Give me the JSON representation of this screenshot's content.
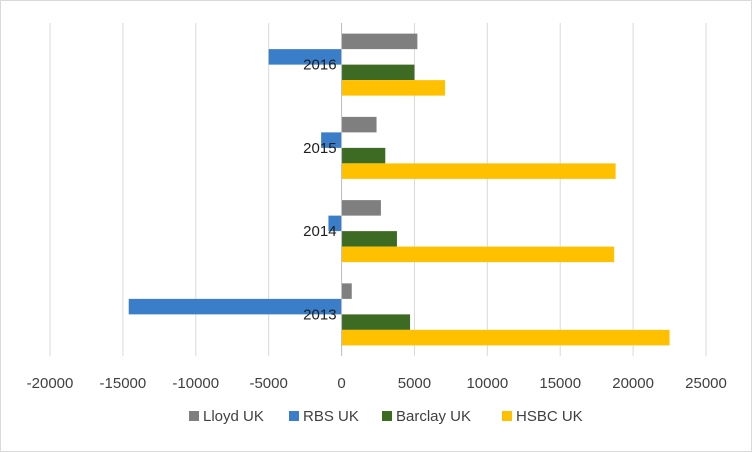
{
  "chart_data": {
    "type": "bar",
    "orientation": "horizontal",
    "categories": [
      "2013",
      "2014",
      "2015",
      "2016"
    ],
    "series": [
      {
        "name": "Lloyd UK",
        "color": "#7f7f7f",
        "values": [
          700,
          2700,
          2400,
          5200
        ]
      },
      {
        "name": "RBS UK",
        "color": "#3a7dc9",
        "values": [
          -14600,
          -900,
          -1400,
          -5000
        ]
      },
      {
        "name": "Barclay UK",
        "color": "#3e6b23",
        "values": [
          4700,
          3800,
          3000,
          5000
        ]
      },
      {
        "name": "HSBC UK",
        "color": "#ffc000",
        "values": [
          22500,
          18700,
          18800,
          7100
        ]
      }
    ],
    "xlim": [
      -20000,
      25000
    ],
    "xticks": [
      "-20000",
      "-15000",
      "-10000",
      "-5000",
      "0",
      "5000",
      "10000",
      "15000",
      "20000",
      "25000"
    ],
    "grid": true,
    "legend_position": "bottom",
    "title": "",
    "xlabel": "",
    "ylabel": ""
  }
}
